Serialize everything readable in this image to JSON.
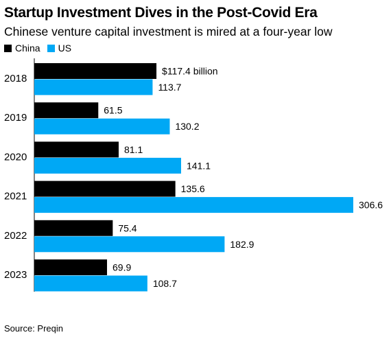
{
  "header": {
    "title": "Startup Investment Dives in the Post-Covid Era",
    "subtitle": "Chinese venture capital investment is mired at a four-year low"
  },
  "legend": {
    "items": [
      {
        "label": "China",
        "color": "#000000"
      },
      {
        "label": "US",
        "color": "#00a8f5"
      }
    ]
  },
  "footer": {
    "source": "Source: Preqin"
  },
  "chart_data": {
    "type": "bar",
    "orientation": "horizontal",
    "title": "Startup Investment Dives in the Post-Covid Era",
    "subtitle": "Chinese venture capital investment is mired at a four-year low",
    "categories": [
      "2018",
      "2019",
      "2020",
      "2021",
      "2022",
      "2023"
    ],
    "series": [
      {
        "name": "China",
        "color": "#000000",
        "values": [
          117.4,
          61.5,
          81.1,
          135.6,
          75.4,
          69.9
        ],
        "labels": [
          "$117.4 billion",
          "61.5",
          "81.1",
          "135.6",
          "75.4",
          "69.9"
        ]
      },
      {
        "name": "US",
        "color": "#00a8f5",
        "values": [
          113.7,
          130.2,
          141.1,
          306.6,
          182.9,
          108.7
        ],
        "labels": [
          "113.7",
          "130.2",
          "141.1",
          "306.6",
          "182.9",
          "108.7"
        ]
      }
    ],
    "xlim": [
      0,
      306.6
    ],
    "grid": false,
    "legend_position": "top-left",
    "unit": "billion USD"
  }
}
